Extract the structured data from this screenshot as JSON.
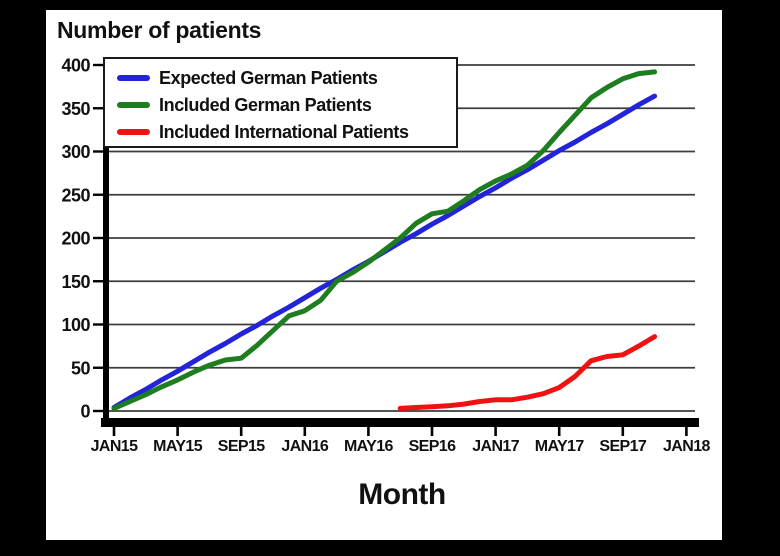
{
  "window": {
    "frame_color": "#000000",
    "panel_color": "#ffffff"
  },
  "chart_data": {
    "type": "line",
    "title": "Number of patients",
    "xlabel": "Month",
    "ylabel": "",
    "ylim": [
      0,
      400
    ],
    "yticks": [
      0,
      50,
      100,
      150,
      200,
      250,
      300,
      350,
      400
    ],
    "grid": "horizontal",
    "gridline_color": "#3d3d3d",
    "axis_color": "#000000",
    "legend_position": "top-left",
    "months_span": 37,
    "x_start_label": "JAN15",
    "x_end_label": "JAN18",
    "xticks": [
      {
        "label": "JAN15",
        "month": 0
      },
      {
        "label": "MAY15",
        "month": 4
      },
      {
        "label": "SEP15",
        "month": 8
      },
      {
        "label": "JAN16",
        "month": 12
      },
      {
        "label": "MAY16",
        "month": 16
      },
      {
        "label": "SEP16",
        "month": 20
      },
      {
        "label": "JAN17",
        "month": 24
      },
      {
        "label": "MAY17",
        "month": 28
      },
      {
        "label": "SEP17",
        "month": 32
      },
      {
        "label": "JAN18",
        "month": 36
      }
    ],
    "series": [
      {
        "name": "Expected German Patients",
        "color": "#2323d9",
        "start_month_index": 0,
        "values": [
          4,
          15,
          25,
          36,
          46,
          57,
          68,
          78,
          89,
          99,
          110,
          120,
          131,
          142,
          152,
          163,
          173,
          184,
          195,
          205,
          216,
          226,
          237,
          248,
          258,
          269,
          279,
          290,
          301,
          311,
          322,
          332,
          343,
          354,
          364
        ]
      },
      {
        "name": "Included German Patients",
        "color": "#1e7d1e",
        "start_month_index": 0,
        "values": [
          3,
          11,
          19,
          28,
          36,
          45,
          53,
          59,
          61,
          76,
          93,
          110,
          116,
          128,
          150,
          160,
          172,
          186,
          200,
          217,
          228,
          231,
          243,
          256,
          266,
          274,
          284,
          301,
          322,
          342,
          362,
          374,
          384,
          390,
          392
        ]
      },
      {
        "name": "Included International Patients",
        "color": "#ee1212",
        "start_month_index": 18,
        "values": [
          3,
          4,
          5,
          6,
          8,
          11,
          13,
          13,
          16,
          20,
          27,
          40,
          58,
          63,
          65,
          75,
          86
        ]
      }
    ]
  }
}
